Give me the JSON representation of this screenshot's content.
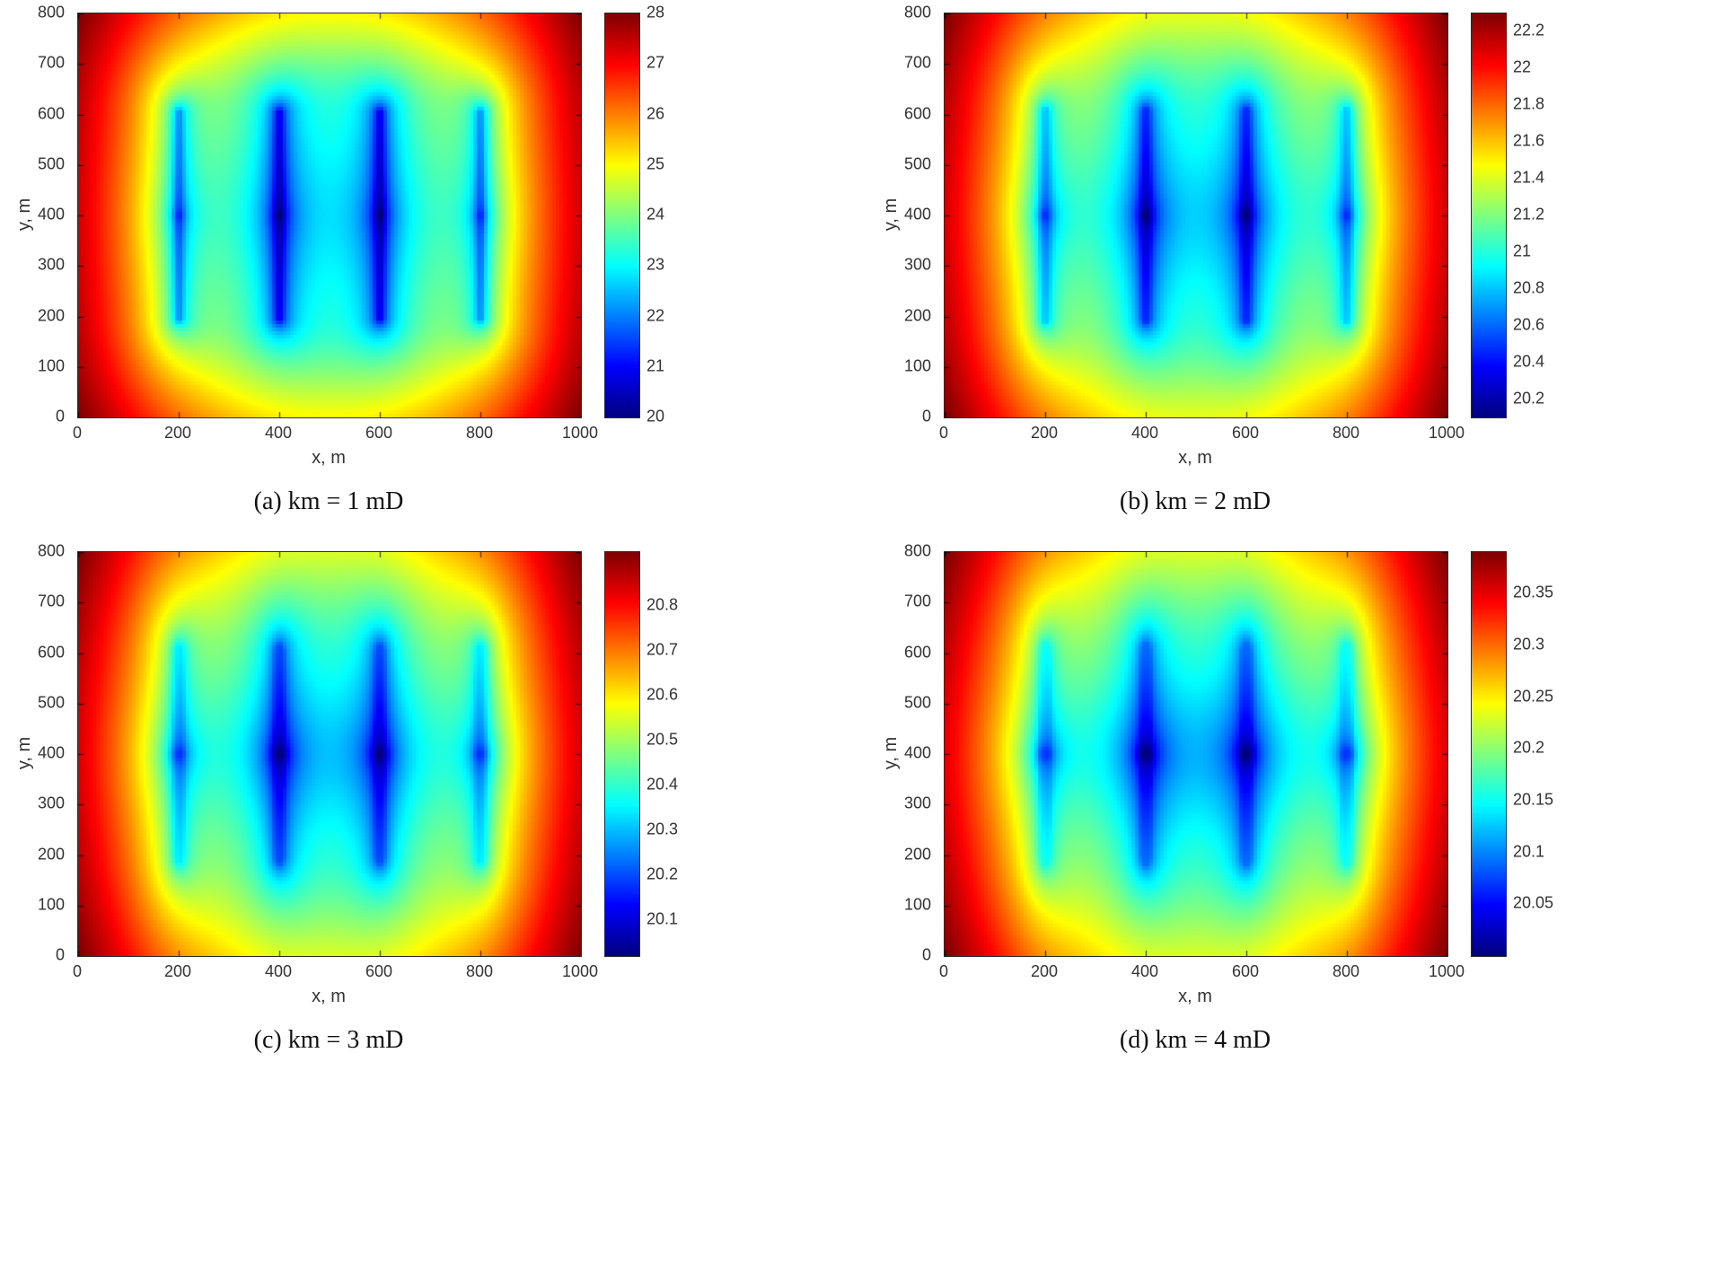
{
  "figure": {
    "description": "2x2 grid of jet-colormap pressure-field heatmaps for four matrix permeability cases, each with its own colorbar",
    "background": "#ffffff",
    "colormap": "jet",
    "axis_text_color": "#333333"
  },
  "chart_data": [
    {
      "type": "heatmap",
      "caption": "(a) km = 1 mD",
      "xlabel": "x, m",
      "ylabel": "y, m",
      "x_range": [
        0,
        1000
      ],
      "y_range": [
        0,
        800
      ],
      "x_ticks": [
        0,
        200,
        400,
        600,
        800,
        1000
      ],
      "y_ticks": [
        0,
        100,
        200,
        300,
        400,
        500,
        600,
        700,
        800
      ],
      "colormap": "jet",
      "value_range": [
        20,
        28
      ],
      "colorbar_ticks": [
        {
          "v": 20,
          "label": "20"
        },
        {
          "v": 21,
          "label": "21"
        },
        {
          "v": 22,
          "label": "22"
        },
        {
          "v": 23,
          "label": "23"
        },
        {
          "v": 24,
          "label": "24"
        },
        {
          "v": 25,
          "label": "25"
        },
        {
          "v": 26,
          "label": "26"
        },
        {
          "v": 27,
          "label": "27"
        },
        {
          "v": 28,
          "label": "28"
        }
      ],
      "wells": {
        "x": [
          200,
          400,
          600,
          800
        ],
        "y": 400,
        "fracture_y": [
          200,
          600
        ]
      },
      "field_params": {
        "beta": 0.18,
        "tip_stretch": 0.75,
        "rw": 6,
        "frac_half": 200
      },
      "pattern": "low-pressure (blue) plateau around four vertically fractured wells at x=200,400,600,800 m, y=400 m; high pressure (red) at domain corners"
    },
    {
      "type": "heatmap",
      "caption": "(b) km = 2 mD",
      "xlabel": "x, m",
      "ylabel": "y, m",
      "x_range": [
        0,
        1000
      ],
      "y_range": [
        0,
        800
      ],
      "x_ticks": [
        0,
        200,
        400,
        600,
        800,
        1000
      ],
      "y_ticks": [
        0,
        100,
        200,
        300,
        400,
        500,
        600,
        700,
        800
      ],
      "colormap": "jet",
      "value_range": [
        20.1,
        22.3
      ],
      "colorbar_ticks": [
        {
          "v": 20.2,
          "label": "20.2"
        },
        {
          "v": 20.4,
          "label": "20.4"
        },
        {
          "v": 20.6,
          "label": "20.6"
        },
        {
          "v": 20.8,
          "label": "20.8"
        },
        {
          "v": 21,
          "label": "21"
        },
        {
          "v": 21.2,
          "label": "21.2"
        },
        {
          "v": 21.4,
          "label": "21.4"
        },
        {
          "v": 21.6,
          "label": "21.6"
        },
        {
          "v": 21.8,
          "label": "21.8"
        },
        {
          "v": 22,
          "label": "22"
        },
        {
          "v": 22.2,
          "label": "22.2"
        }
      ],
      "wells": {
        "x": [
          200,
          400,
          600,
          800
        ],
        "y": 400,
        "fracture_y": [
          200,
          600
        ]
      },
      "field_params": {
        "beta": 0.25,
        "tip_stretch": 0.6,
        "rw": 7,
        "frac_half": 200
      },
      "pattern": "low-pressure (blue) plateau around four vertically fractured wells; high pressure (red) at corners"
    },
    {
      "type": "heatmap",
      "caption": "(c) km = 3 mD",
      "xlabel": "x, m",
      "ylabel": "y, m",
      "x_range": [
        0,
        1000
      ],
      "y_range": [
        0,
        800
      ],
      "x_ticks": [
        0,
        200,
        400,
        600,
        800,
        1000
      ],
      "y_ticks": [
        0,
        100,
        200,
        300,
        400,
        500,
        600,
        700,
        800
      ],
      "colormap": "jet",
      "value_range": [
        20.02,
        20.92
      ],
      "colorbar_ticks": [
        {
          "v": 20.1,
          "label": "20.1"
        },
        {
          "v": 20.2,
          "label": "20.2"
        },
        {
          "v": 20.3,
          "label": "20.3"
        },
        {
          "v": 20.4,
          "label": "20.4"
        },
        {
          "v": 20.5,
          "label": "20.5"
        },
        {
          "v": 20.6,
          "label": "20.6"
        },
        {
          "v": 20.7,
          "label": "20.7"
        },
        {
          "v": 20.8,
          "label": "20.8"
        }
      ],
      "wells": {
        "x": [
          200,
          400,
          600,
          800
        ],
        "y": 400,
        "fracture_y": [
          200,
          600
        ]
      },
      "field_params": {
        "beta": 0.3,
        "tip_stretch": 0.5,
        "rw": 8,
        "frac_half": 200
      },
      "pattern": "low-pressure (blue) plateau around four vertically fractured wells; high pressure (red) at corners"
    },
    {
      "type": "heatmap",
      "caption": "(d) km = 4 mD",
      "xlabel": "x, m",
      "ylabel": "y, m",
      "x_range": [
        0,
        1000
      ],
      "y_range": [
        0,
        800
      ],
      "x_ticks": [
        0,
        200,
        400,
        600,
        800,
        1000
      ],
      "y_ticks": [
        0,
        100,
        200,
        300,
        400,
        500,
        600,
        700,
        800
      ],
      "colormap": "jet",
      "value_range": [
        20.0,
        20.39
      ],
      "colorbar_ticks": [
        {
          "v": 20.05,
          "label": "20.05"
        },
        {
          "v": 20.1,
          "label": "20.1"
        },
        {
          "v": 20.15,
          "label": "20.15"
        },
        {
          "v": 20.2,
          "label": "20.2"
        },
        {
          "v": 20.25,
          "label": "20.25"
        },
        {
          "v": 20.3,
          "label": "20.3"
        },
        {
          "v": 20.35,
          "label": "20.35"
        }
      ],
      "wells": {
        "x": [
          200,
          400,
          600,
          800
        ],
        "y": 400,
        "fracture_y": [
          200,
          600
        ]
      },
      "field_params": {
        "beta": 0.35,
        "tip_stretch": 0.45,
        "rw": 9,
        "frac_half": 200
      },
      "pattern": "low-pressure (blue) plateau around four vertically fractured wells; high pressure (red) at corners"
    }
  ]
}
